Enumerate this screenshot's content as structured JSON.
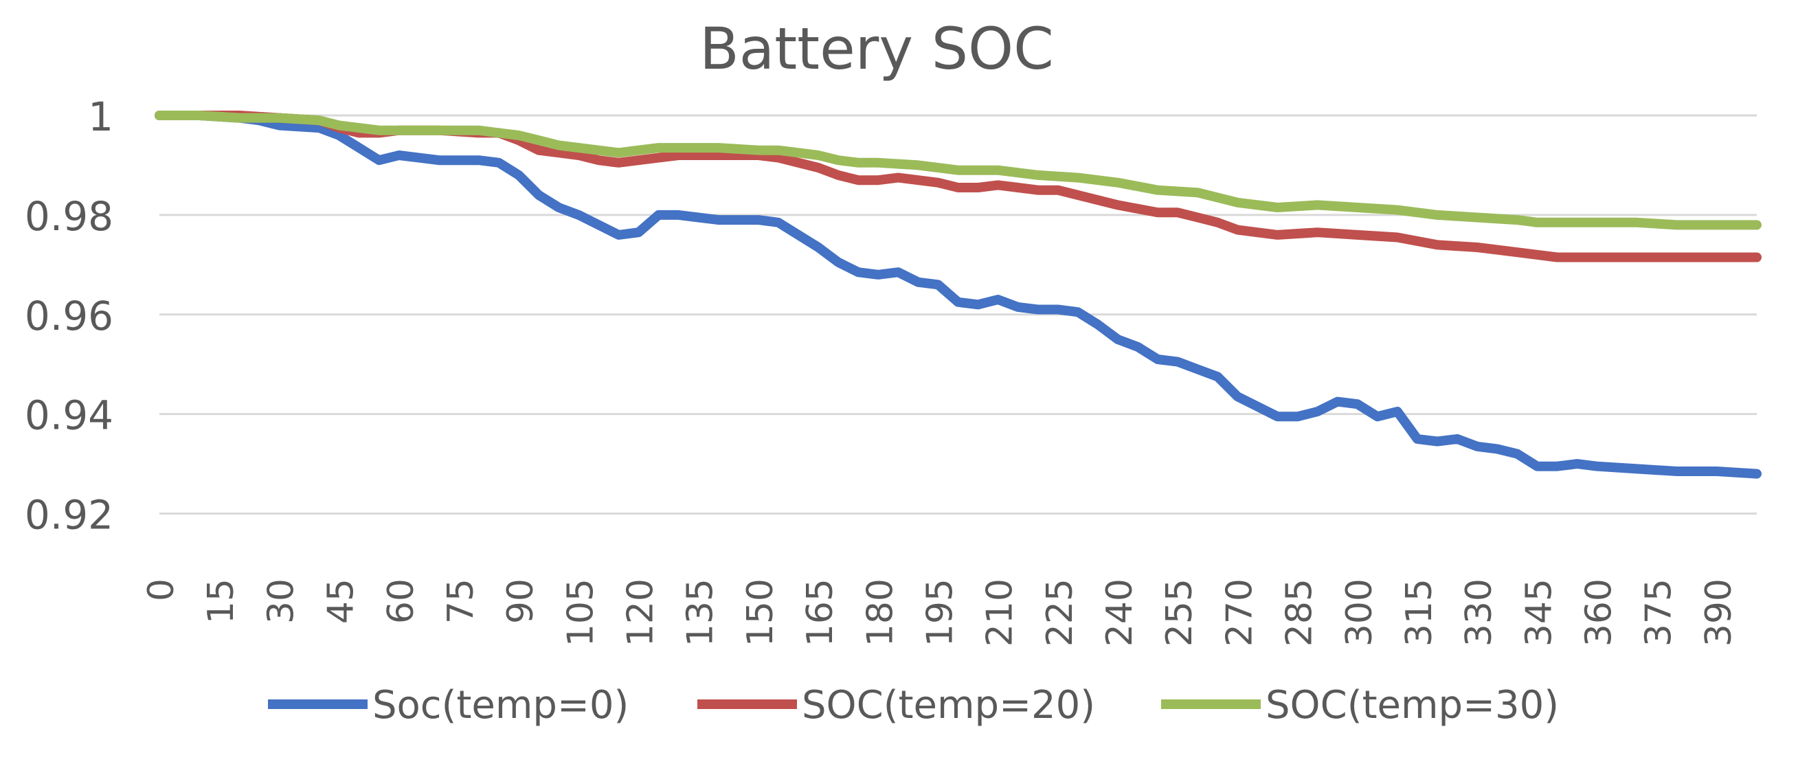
{
  "chart_data": {
    "type": "line",
    "title": "Battery SOC",
    "xlabel": "",
    "ylabel": "",
    "ylim": [
      0.91,
      1.0
    ],
    "y_ticks": [
      1,
      0.98,
      0.96,
      0.94,
      0.92
    ],
    "y_tick_labels": [
      "1",
      "0.98",
      "0.96",
      "0.94",
      "0.92"
    ],
    "x_tick_labels": [
      "0",
      "15",
      "30",
      "45",
      "60",
      "75",
      "90",
      "105",
      "120",
      "135",
      "150",
      "165",
      "180",
      "195",
      "210",
      "225",
      "240",
      "255",
      "270",
      "285",
      "300",
      "315",
      "330",
      "345",
      "360",
      "375",
      "390"
    ],
    "x_tick_values": [
      0,
      15,
      30,
      45,
      60,
      75,
      90,
      105,
      120,
      135,
      150,
      165,
      180,
      195,
      210,
      225,
      240,
      255,
      270,
      285,
      300,
      315,
      330,
      345,
      360,
      375,
      390
    ],
    "x_range": [
      0,
      400
    ],
    "grid": "horizontal",
    "legend_position": "bottom",
    "series": [
      {
        "name": "Soc(temp=0)",
        "color": "#4472c4",
        "x": [
          0,
          10,
          20,
          25,
          30,
          40,
          45,
          50,
          55,
          60,
          65,
          70,
          80,
          85,
          90,
          95,
          100,
          105,
          110,
          115,
          120,
          125,
          130,
          140,
          150,
          155,
          160,
          165,
          170,
          175,
          180,
          185,
          190,
          195,
          200,
          205,
          210,
          215,
          220,
          225,
          230,
          235,
          240,
          245,
          250,
          255,
          260,
          265,
          270,
          275,
          280,
          285,
          290,
          295,
          300,
          305,
          310,
          315,
          320,
          325,
          330,
          335,
          340,
          345,
          350,
          355,
          360,
          370,
          380,
          390,
          400
        ],
        "values": [
          1.0,
          1.0,
          0.9995,
          0.999,
          0.998,
          0.9975,
          0.996,
          0.9935,
          0.991,
          0.992,
          0.9915,
          0.991,
          0.991,
          0.9905,
          0.988,
          0.984,
          0.9815,
          0.98,
          0.978,
          0.976,
          0.9765,
          0.98,
          0.98,
          0.979,
          0.979,
          0.9785,
          0.976,
          0.9735,
          0.9705,
          0.9685,
          0.968,
          0.9685,
          0.9665,
          0.966,
          0.9625,
          0.962,
          0.963,
          0.9615,
          0.961,
          0.961,
          0.9605,
          0.958,
          0.955,
          0.9535,
          0.951,
          0.9505,
          0.949,
          0.9475,
          0.9435,
          0.9415,
          0.9395,
          0.9395,
          0.9405,
          0.9425,
          0.942,
          0.9395,
          0.9405,
          0.935,
          0.9345,
          0.935,
          0.9335,
          0.933,
          0.932,
          0.9295,
          0.9295,
          0.93,
          0.9295,
          0.929,
          0.9285,
          0.9285,
          0.928
        ]
      },
      {
        "name": "SOC(temp=20)",
        "color": "#c0504d",
        "x": [
          0,
          20,
          30,
          40,
          45,
          50,
          55,
          60,
          70,
          80,
          85,
          90,
          95,
          100,
          105,
          110,
          115,
          120,
          125,
          130,
          140,
          150,
          155,
          160,
          165,
          170,
          175,
          180,
          185,
          190,
          195,
          200,
          205,
          210,
          215,
          220,
          225,
          230,
          240,
          250,
          255,
          260,
          265,
          270,
          280,
          290,
          300,
          310,
          320,
          330,
          340,
          345,
          350,
          360,
          375,
          390,
          400
        ],
        "values": [
          1.0,
          1.0,
          0.9995,
          0.999,
          0.9975,
          0.9965,
          0.9965,
          0.997,
          0.997,
          0.9965,
          0.9965,
          0.995,
          0.993,
          0.9925,
          0.992,
          0.991,
          0.9905,
          0.991,
          0.9915,
          0.992,
          0.992,
          0.992,
          0.9915,
          0.9905,
          0.9895,
          0.988,
          0.987,
          0.987,
          0.9875,
          0.987,
          0.9865,
          0.9855,
          0.9855,
          0.986,
          0.9855,
          0.985,
          0.985,
          0.984,
          0.982,
          0.9805,
          0.9805,
          0.9795,
          0.9785,
          0.977,
          0.976,
          0.9765,
          0.976,
          0.9755,
          0.974,
          0.9735,
          0.9725,
          0.972,
          0.9715,
          0.9715,
          0.9715,
          0.9715,
          0.9715
        ]
      },
      {
        "name": "SOC(temp=30)",
        "color": "#9bbb59",
        "x": [
          0,
          10,
          20,
          30,
          40,
          45,
          50,
          55,
          60,
          70,
          80,
          85,
          90,
          95,
          100,
          110,
          115,
          120,
          125,
          130,
          140,
          150,
          155,
          160,
          165,
          170,
          175,
          180,
          190,
          195,
          200,
          210,
          215,
          220,
          230,
          240,
          250,
          260,
          270,
          280,
          290,
          300,
          310,
          320,
          330,
          340,
          345,
          350,
          360,
          370,
          380,
          390,
          400
        ],
        "values": [
          1.0,
          1.0,
          0.9995,
          0.9995,
          0.999,
          0.998,
          0.9975,
          0.997,
          0.997,
          0.997,
          0.997,
          0.9965,
          0.996,
          0.995,
          0.994,
          0.993,
          0.9925,
          0.993,
          0.9935,
          0.9935,
          0.9935,
          0.993,
          0.993,
          0.9925,
          0.992,
          0.991,
          0.9905,
          0.9905,
          0.99,
          0.9895,
          0.989,
          0.989,
          0.9885,
          0.988,
          0.9875,
          0.9865,
          0.985,
          0.9845,
          0.9825,
          0.9815,
          0.982,
          0.9815,
          0.981,
          0.98,
          0.9795,
          0.979,
          0.9785,
          0.9785,
          0.9785,
          0.9785,
          0.978,
          0.978,
          0.978
        ]
      }
    ]
  }
}
